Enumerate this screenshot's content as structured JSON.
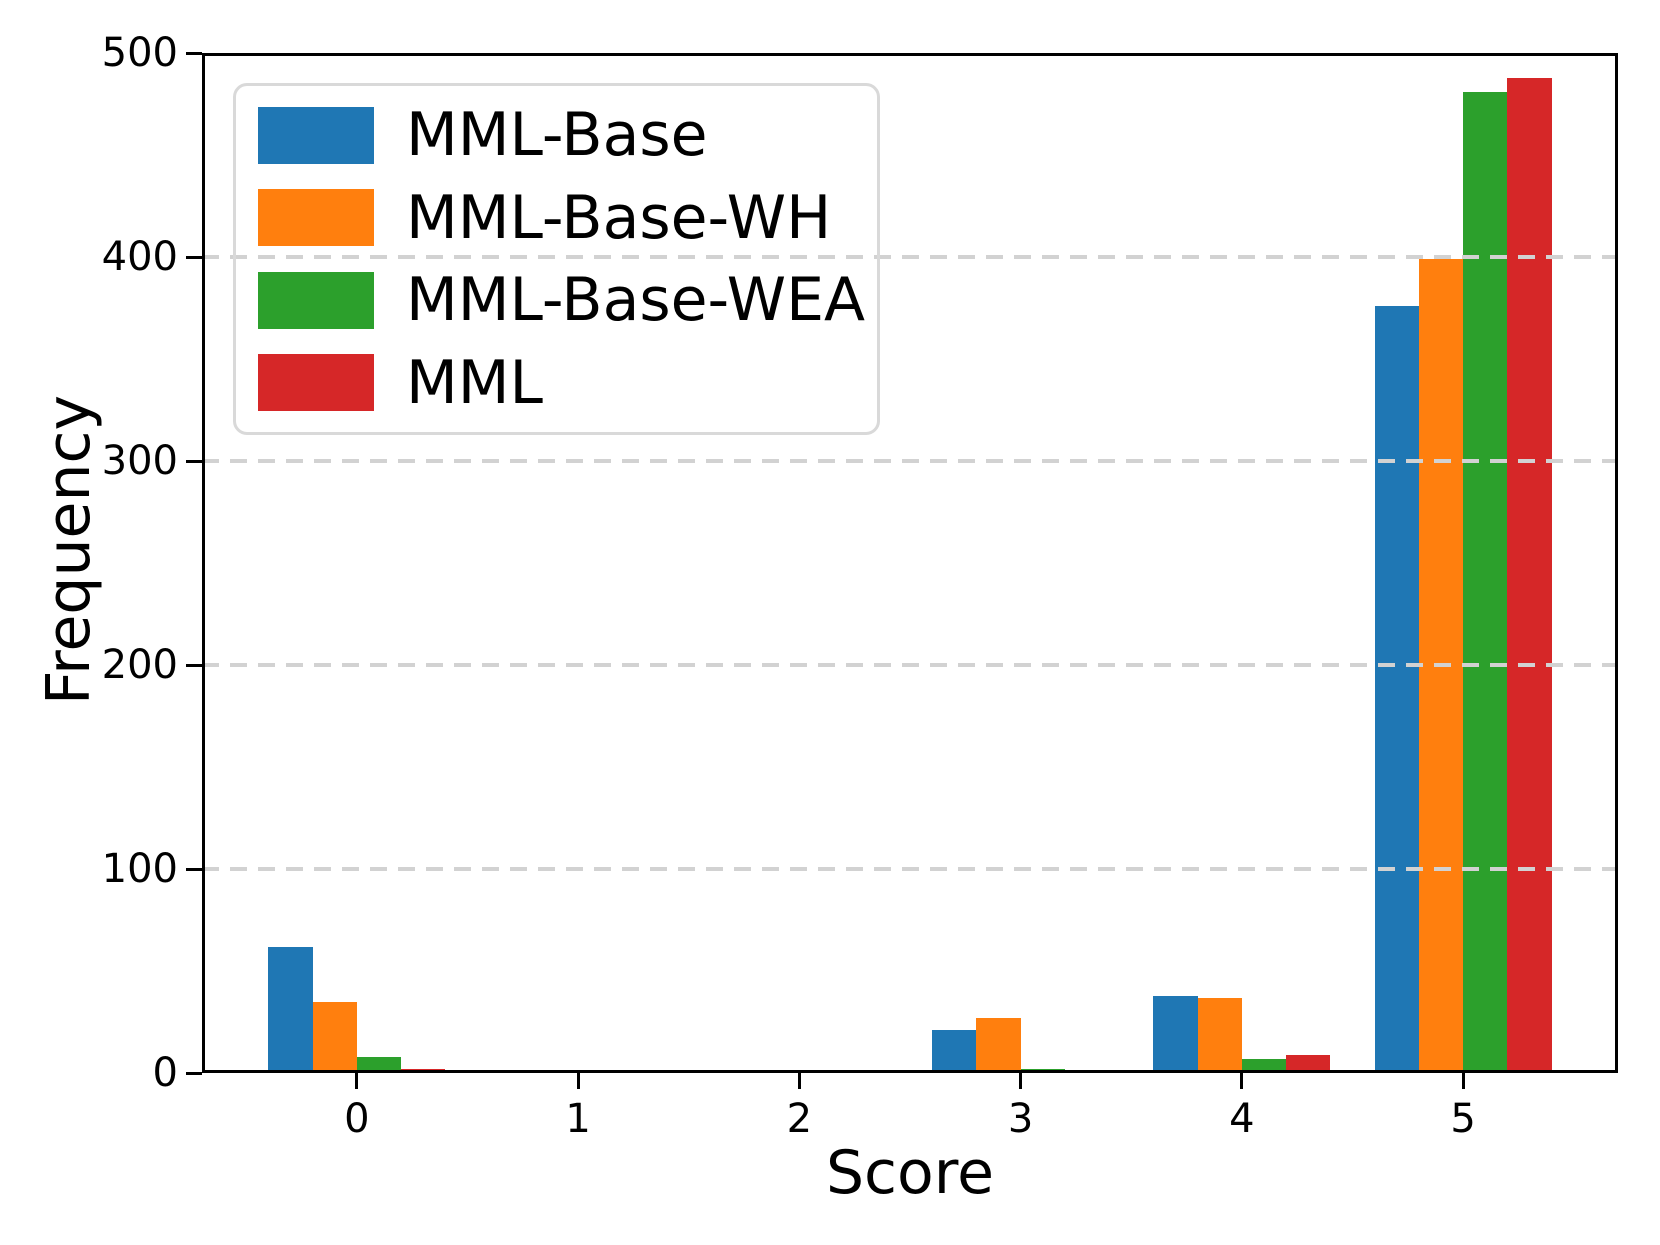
{
  "chart_data": {
    "type": "bar",
    "title": "",
    "xlabel": "Score",
    "ylabel": "Frequency",
    "categories": [
      "0",
      "1",
      "2",
      "3",
      "4",
      "5"
    ],
    "series": [
      {
        "name": "MML-Base",
        "color": "#1f77b4",
        "values": [
          62,
          0,
          0,
          21,
          38,
          376
        ]
      },
      {
        "name": "MML-Base-WH",
        "color": "#ff7f0e",
        "values": [
          35,
          1,
          0,
          27,
          37,
          399
        ]
      },
      {
        "name": "MML-Base-WEA",
        "color": "#2ca02c",
        "values": [
          8,
          0,
          0,
          2,
          7,
          481
        ]
      },
      {
        "name": "MML",
        "color": "#d62728",
        "values": [
          2,
          0,
          0,
          0,
          9,
          488
        ]
      }
    ],
    "ylim": [
      0,
      500
    ],
    "yticks": [
      0,
      100,
      200,
      300,
      400,
      500
    ],
    "xlim": [
      -0.7,
      5.7
    ],
    "bar_width": 0.2,
    "group_width": 0.8,
    "grid": {
      "axis": "y",
      "style": "dashed",
      "color": "#d2d2d2",
      "above_bars": true
    },
    "legend_position": "upper-left",
    "axis_color": "#000000",
    "background_color": "#ffffff"
  }
}
